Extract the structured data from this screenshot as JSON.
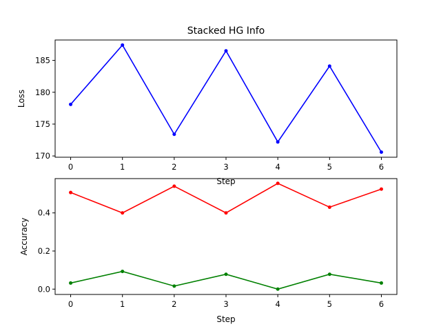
{
  "chart_data": [
    {
      "type": "line",
      "title": "Stacked HG Info",
      "xlabel": "Step",
      "ylabel": "Loss",
      "xlim": [
        -0.3,
        6.3
      ],
      "ylim": [
        169.8,
        188.2
      ],
      "xticks": [
        0,
        1,
        2,
        3,
        4,
        5,
        6
      ],
      "yticks": [
        170,
        175,
        180,
        185
      ],
      "grid": false,
      "series": [
        {
          "color": "#0000ff",
          "x": [
            0,
            1,
            2,
            3,
            4,
            5,
            6
          ],
          "y": [
            178.1,
            187.4,
            173.4,
            186.5,
            172.2,
            184.1,
            170.6
          ]
        }
      ]
    },
    {
      "type": "line",
      "title": "",
      "xlabel": "Step",
      "ylabel": "Accuracy",
      "xlim": [
        -0.3,
        6.3
      ],
      "ylim": [
        -0.028,
        0.58
      ],
      "xticks": [
        0,
        1,
        2,
        3,
        4,
        5,
        6
      ],
      "yticks": [
        0.0,
        0.2,
        0.4
      ],
      "grid": false,
      "series": [
        {
          "color": "#ff0000",
          "x": [
            0,
            1,
            2,
            3,
            4,
            5,
            6
          ],
          "y": [
            0.507,
            0.4,
            0.54,
            0.4,
            0.555,
            0.43,
            0.525
          ]
        },
        {
          "color": "#008000",
          "x": [
            0,
            1,
            2,
            3,
            4,
            5,
            6
          ],
          "y": [
            0.032,
            0.093,
            0.016,
            0.078,
            0.0,
            0.078,
            0.032
          ]
        }
      ]
    }
  ]
}
